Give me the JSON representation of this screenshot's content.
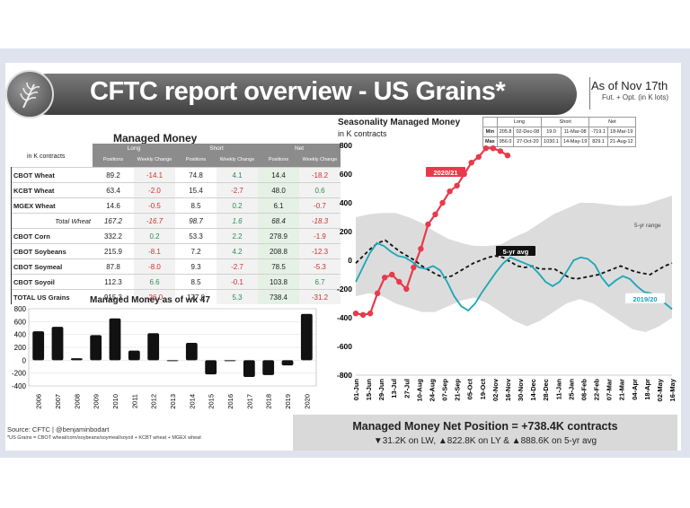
{
  "header": {
    "title": "CFTC report overview - US Grains*",
    "as_of": "As of Nov 17th",
    "as_of_sub": "Fut. + Opt. (in K lots)"
  },
  "table": {
    "title": "Managed Money",
    "units": "in K contracts",
    "groups": [
      "Long",
      "Short",
      "Net"
    ],
    "subcols": [
      "Positions",
      "Weekly Change",
      "Positions",
      "Weekly Change",
      "Positions",
      "Weekly Change"
    ],
    "rows": [
      {
        "name": "CBOT Wheat",
        "vals": [
          "89.2",
          "-14.1",
          "74.8",
          "4.1",
          "14.4",
          "-18.2"
        ]
      },
      {
        "name": "KCBT Wheat",
        "vals": [
          "63.4",
          "-2.0",
          "15.4",
          "-2.7",
          "48.0",
          "0.6"
        ]
      },
      {
        "name": "MGEX Wheat",
        "vals": [
          "14.6",
          "-0.5",
          "8.5",
          "0.2",
          "6.1",
          "-0.7"
        ]
      },
      {
        "name": "Total Wheat",
        "vals": [
          "167.2",
          "-16.7",
          "98.7",
          "1.6",
          "68.4",
          "-18.3"
        ],
        "subtotal": true
      },
      {
        "name": "CBOT Corn",
        "vals": [
          "332.2",
          "0.2",
          "53.3",
          "2.2",
          "278.9",
          "-1.9"
        ]
      },
      {
        "name": "CBOT Soybeans",
        "vals": [
          "215.9",
          "-8.1",
          "7.2",
          "4.2",
          "208.8",
          "-12.3"
        ]
      },
      {
        "name": "CBOT Soymeal",
        "vals": [
          "87.8",
          "-8.0",
          "9.3",
          "-2.7",
          "78.5",
          "-5.3"
        ]
      },
      {
        "name": "CBOT Soyoil",
        "vals": [
          "112.3",
          "6.6",
          "8.5",
          "-0.1",
          "103.8",
          "6.7"
        ]
      },
      {
        "name": "TOTAL US Grains",
        "vals": [
          "915.3",
          "-26.0",
          "177.0",
          "5.3",
          "738.4",
          "-31.2"
        ]
      }
    ]
  },
  "chart_data": [
    {
      "type": "bar",
      "title": "Managed Money as of wk 47",
      "categories": [
        "2006",
        "2007",
        "2008",
        "2009",
        "2010",
        "2011",
        "2012",
        "2013",
        "2014",
        "2015",
        "2016",
        "2017",
        "2018",
        "2019",
        "2020"
      ],
      "values": [
        450,
        520,
        30,
        390,
        650,
        150,
        420,
        -10,
        270,
        -220,
        0,
        -260,
        -230,
        -80,
        720
      ],
      "ylim": [
        -400,
        800
      ],
      "yticks": [
        -400,
        -200,
        0,
        200,
        400,
        600,
        800
      ],
      "color": "#111111"
    },
    {
      "type": "line",
      "title": "Seasonality Managed Money",
      "ylabel": "in K contracts",
      "xticks": [
        "01-Jun",
        "15-Jun",
        "29-Jun",
        "13-Jul",
        "27-Jul",
        "10-Aug",
        "24-Aug",
        "07-Sep",
        "21-Sep",
        "05-Oct",
        "19-Oct",
        "02-Nov",
        "16-Nov",
        "30-Nov",
        "14-Dec",
        "28-Dec",
        "11-Jan",
        "25-Jan",
        "08-Feb",
        "22-Feb",
        "07-Mar",
        "21-Mar",
        "04-Apr",
        "18-Apr",
        "02-May",
        "16-May"
      ],
      "xtick_labels": [
        "01-Jun",
        "15-Jun",
        "29-Jun",
        "13-Jul",
        "27-Jul",
        "10-Aug",
        "24-Aug",
        "07-Sep",
        "21-Sep",
        "05-Oct",
        "19-Oct",
        "02-Nov",
        "16-Nov",
        "30-Nov",
        "14-Dec",
        "28-Dec",
        "11-Jan",
        "25-Jan",
        "08-Feb",
        "22-Feb",
        "07-Mar",
        "21-Mar",
        "04-Apr",
        "18-Apr",
        "02-May",
        "16-May"
      ],
      "ylim": [
        -800,
        800
      ],
      "yticks": [
        -800,
        -600,
        -400,
        -200,
        0,
        200,
        400,
        600,
        800
      ],
      "range_label": "5-yr range",
      "series": [
        {
          "name": "2020/21",
          "color": "#e83a4b",
          "values": [
            -370,
            -380,
            -370,
            -230,
            -120,
            -100,
            -150,
            -200,
            -50,
            80,
            250,
            320,
            400,
            480,
            520,
            600,
            680,
            720,
            780,
            780,
            760,
            730
          ]
        },
        {
          "name": "5-yr avg",
          "color": "#111111",
          "values": [
            -20,
            30,
            80,
            120,
            140,
            100,
            60,
            30,
            0,
            -40,
            -70,
            -100,
            -120,
            -110,
            -80,
            -50,
            -20,
            0,
            20,
            30,
            20,
            -10,
            -40,
            -50,
            -40,
            -60,
            -60,
            -60,
            -90,
            -120,
            -130,
            -120,
            -110,
            -100,
            -80,
            -60,
            -40,
            -60,
            -80,
            -90,
            -100,
            -70,
            -40,
            -20
          ]
        },
        {
          "name": "2019/20",
          "color": "#1aa6b7",
          "values": [
            -150,
            -50,
            50,
            120,
            100,
            60,
            30,
            20,
            -10,
            -50,
            -60,
            -40,
            -70,
            -150,
            -250,
            -320,
            -350,
            -300,
            -220,
            -150,
            -80,
            -20,
            20,
            0,
            -20,
            -40,
            -90,
            -150,
            -180,
            -150,
            -80,
            0,
            20,
            10,
            -30,
            -120,
            -180,
            -140,
            -110,
            -130,
            -180,
            -220,
            -230,
            -260,
            -300,
            -340
          ]
        }
      ],
      "range_upper": [
        300,
        320,
        330,
        330,
        300,
        260,
        200,
        150,
        120,
        100,
        100,
        110,
        160,
        200,
        260,
        320,
        360,
        400,
        400,
        390,
        380,
        380,
        390,
        420,
        450
      ],
      "range_lower": [
        -250,
        -230,
        -250,
        -300,
        -330,
        -360,
        -360,
        -320,
        -280,
        -260,
        -300,
        -360,
        -420,
        -460,
        -420,
        -360,
        -300,
        -270,
        -300,
        -360,
        -420,
        -480,
        -500,
        -460,
        -400
      ],
      "stats": {
        "headers": [
          "",
          "Long",
          "Short",
          "Net"
        ],
        "rows": [
          [
            "Min",
            "205.8",
            "02-Dec-08",
            "19.0",
            "11-Mar-08",
            "-719.1",
            "18-Mar-19"
          ],
          [
            "Max",
            "956.0",
            "27-Oct-20",
            "1030.1",
            "14-May-19",
            "829.1",
            "21-Aug-12"
          ]
        ]
      }
    }
  ],
  "summary": {
    "headline": "Managed Money Net Position = +738.4K contracts",
    "detail": "▼31.2K on LW, ▲822.8K on LY & ▲888.6K on 5-yr avg"
  },
  "source": {
    "line1": "Source: CFTC | @benjaminbodart",
    "line2": "*US Grains = CBOT wheat/corn/soybeans/soymeal/soyoil + KCBT wheat + MGEX wheat"
  }
}
